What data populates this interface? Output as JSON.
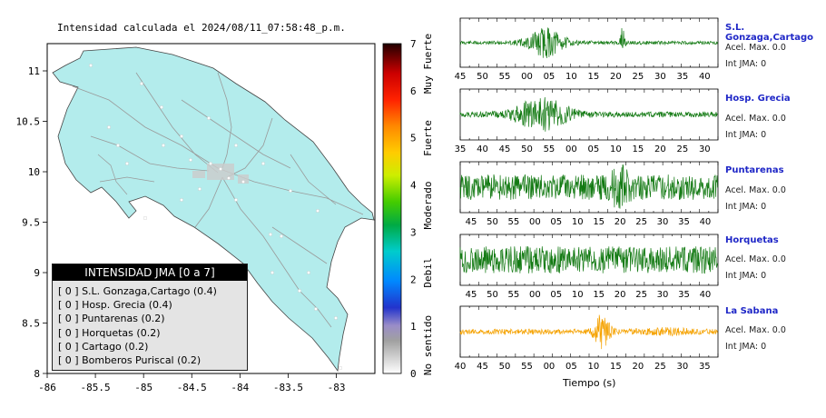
{
  "map": {
    "title": "Intensidad calculada el 2024/08/11_07:58:48_p.m.",
    "x_ticks": [
      "-86",
      "-85.5",
      "-85",
      "-84.5",
      "-84",
      "-83.5",
      "-83"
    ],
    "y_ticks": [
      "11",
      "10.5",
      "10",
      "9.5",
      "9",
      "8.5",
      "8"
    ],
    "land_color": "#b3ecec",
    "sea_color": "#ffffff"
  },
  "legend": {
    "title": "INTENSIDAD JMA [0 a 7]",
    "items": [
      "[ 0 ]  S.L. Gonzaga,Cartago (0.4)",
      "[ 0 ]  Hosp. Grecia (0.4)",
      "[ 0 ]  Puntarenas (0.2)",
      "[ 0 ]  Horquetas (0.2)",
      "[ 0 ]  Cartago (0.2)",
      "[ 0 ]  Bomberos Puriscal (0.2)"
    ]
  },
  "colorbar": {
    "ticks": [
      "0",
      "1",
      "2",
      "3",
      "4",
      "5",
      "6",
      "7"
    ],
    "labels": [
      "No sentido",
      "Debil",
      "Moderado",
      "Fuerte",
      "Muy Fuerte"
    ]
  },
  "stations": [
    {
      "name": "S.L. Gonzaga,Cartago",
      "accel": "Acel. Max. 0.0",
      "int": "Int JMA: 0",
      "color": "#137a13",
      "ticks": [
        "45",
        "50",
        "55",
        "00",
        "05",
        "10",
        "15",
        "20",
        "25",
        "30",
        "35",
        "40"
      ]
    },
    {
      "name": "Hosp. Grecia",
      "accel": "Acel. Max. 0.0",
      "int": "Int JMA: 0",
      "color": "#137a13",
      "ticks": [
        "35",
        "40",
        "45",
        "50",
        "55",
        "00",
        "05",
        "10",
        "15",
        "20",
        "25",
        "30"
      ]
    },
    {
      "name": "Puntarenas",
      "accel": "Acel. Max. 0.0",
      "int": "Int JMA: 0",
      "color": "#137a13",
      "ticks": [
        "45",
        "50",
        "55",
        "00",
        "05",
        "10",
        "15",
        "20",
        "25",
        "30",
        "35",
        "40"
      ]
    },
    {
      "name": "Horquetas",
      "accel": "Acel. Max. 0.0",
      "int": "Int JMA: 0",
      "color": "#137a13",
      "ticks": [
        "45",
        "50",
        "55",
        "00",
        "05",
        "10",
        "15",
        "20",
        "25",
        "30",
        "35",
        "40"
      ]
    },
    {
      "name": "La Sabana",
      "accel": "Acel. Max. 0.0",
      "int": "Int JMA: 0",
      "color": "#f5a200",
      "ticks": [
        "40",
        "45",
        "50",
        "55",
        "00",
        "05",
        "10",
        "15",
        "20",
        "25",
        "30",
        "35"
      ]
    }
  ],
  "x_axis_label": "Tiempo (s)"
}
